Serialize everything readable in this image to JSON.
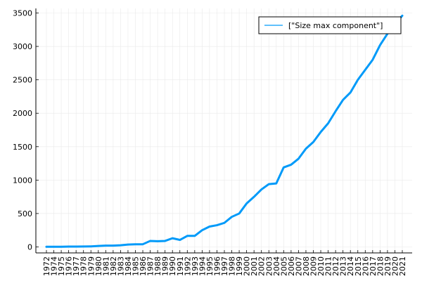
{
  "chart_data": {
    "type": "line",
    "title": "",
    "xlabel": "",
    "ylabel": "",
    "grid": true,
    "legend_position": "top-right",
    "xlim": [
      1972,
      2021
    ],
    "ylim": [
      0,
      3500
    ],
    "y_ticks": [
      0,
      500,
      1000,
      1500,
      2000,
      2500,
      3000,
      3500
    ],
    "x_ticks": [
      "1972",
      "1974",
      "1975",
      "1976",
      "1977",
      "1978",
      "1979",
      "1980",
      "1981",
      "1982",
      "1983",
      "1984",
      "1985",
      "1986",
      "1987",
      "1988",
      "1989",
      "1990",
      "1991",
      "1992",
      "1993",
      "1994",
      "1995",
      "1996",
      "1997",
      "1998",
      "1999",
      "2000",
      "2001",
      "2002",
      "2003",
      "2004",
      "2005",
      "2006",
      "2007",
      "2008",
      "2009",
      "2010",
      "2011",
      "2012",
      "2013",
      "2014",
      "2015",
      "2016",
      "2017",
      "2018",
      "2019",
      "2020",
      "2021"
    ],
    "series": [
      {
        "name": "[\"Size max component\"]",
        "color": "#009af9",
        "x": [
          "1972",
          "1974",
          "1975",
          "1976",
          "1977",
          "1978",
          "1979",
          "1980",
          "1981",
          "1982",
          "1983",
          "1984",
          "1985",
          "1986",
          "1987",
          "1988",
          "1989",
          "1990",
          "1991",
          "1992",
          "1993",
          "1994",
          "1995",
          "1996",
          "1997",
          "1998",
          "1999",
          "2000",
          "2001",
          "2002",
          "2003",
          "2004",
          "2005",
          "2006",
          "2007",
          "2008",
          "2009",
          "2010",
          "2011",
          "2012",
          "2013",
          "2014",
          "2015",
          "2016",
          "2017",
          "2018",
          "2019",
          "2020",
          "2021"
        ],
        "values": [
          2,
          3,
          3,
          5,
          5,
          6,
          8,
          15,
          20,
          20,
          25,
          35,
          40,
          40,
          90,
          85,
          90,
          130,
          105,
          165,
          165,
          250,
          305,
          325,
          360,
          450,
          500,
          650,
          750,
          860,
          940,
          950,
          1190,
          1230,
          1320,
          1470,
          1570,
          1720,
          1850,
          2030,
          2200,
          2310,
          2500,
          2650,
          2800,
          3020,
          3190,
          3340,
          3460
        ]
      }
    ]
  }
}
